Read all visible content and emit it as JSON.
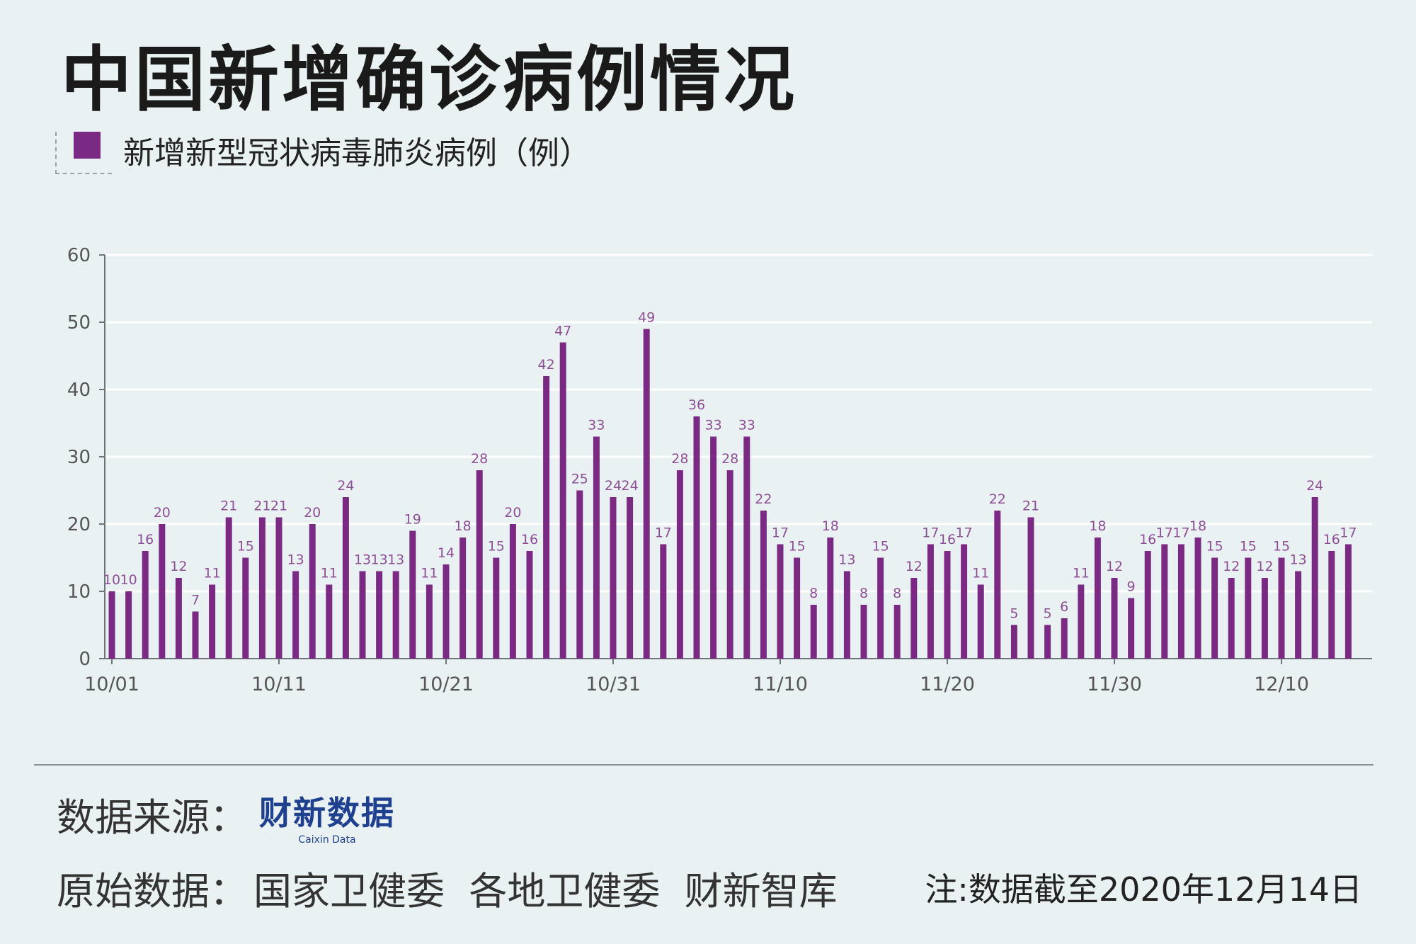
{
  "title": "中国新增确诊病例情况",
  "legend": {
    "label": "新增新型冠状病毒肺炎病例（例）",
    "color": "#7b2a84"
  },
  "footer": {
    "source_label": "数据来源：",
    "logo_text": "财新数据",
    "logo_subtext": "Caixin Data",
    "original_label": "原始数据：",
    "original_sources": "国家卫健委  各地卫健委  财新智库",
    "note": "注:数据截至2020年12月14日"
  },
  "chart_data": {
    "type": "bar",
    "title": "中国新增确诊病例情况",
    "series": [
      {
        "name": "新增新型冠状病毒肺炎病例（例）",
        "color": "#7b2a84",
        "values": [
          10,
          10,
          16,
          20,
          12,
          7,
          11,
          21,
          15,
          21,
          21,
          13,
          20,
          11,
          24,
          13,
          13,
          13,
          19,
          11,
          14,
          18,
          28,
          15,
          20,
          16,
          42,
          47,
          25,
          33,
          24,
          24,
          49,
          17,
          28,
          36,
          33,
          28,
          33,
          22,
          17,
          15,
          8,
          18,
          13,
          8,
          15,
          8,
          12,
          17,
          16,
          17,
          11,
          22,
          5,
          21,
          5,
          6,
          11,
          18,
          12,
          9,
          16,
          17,
          17,
          18,
          15,
          12,
          15,
          12,
          15,
          13,
          24,
          16,
          17
        ]
      }
    ],
    "x_tick_labels": [
      "10/01",
      "10/11",
      "10/21",
      "10/31",
      "11/10",
      "11/20",
      "11/30",
      "12/10"
    ],
    "y_ticks": [
      0,
      10,
      20,
      30,
      40,
      50,
      60
    ],
    "ylim": [
      0,
      60
    ],
    "grid": true,
    "data_labels": true
  }
}
